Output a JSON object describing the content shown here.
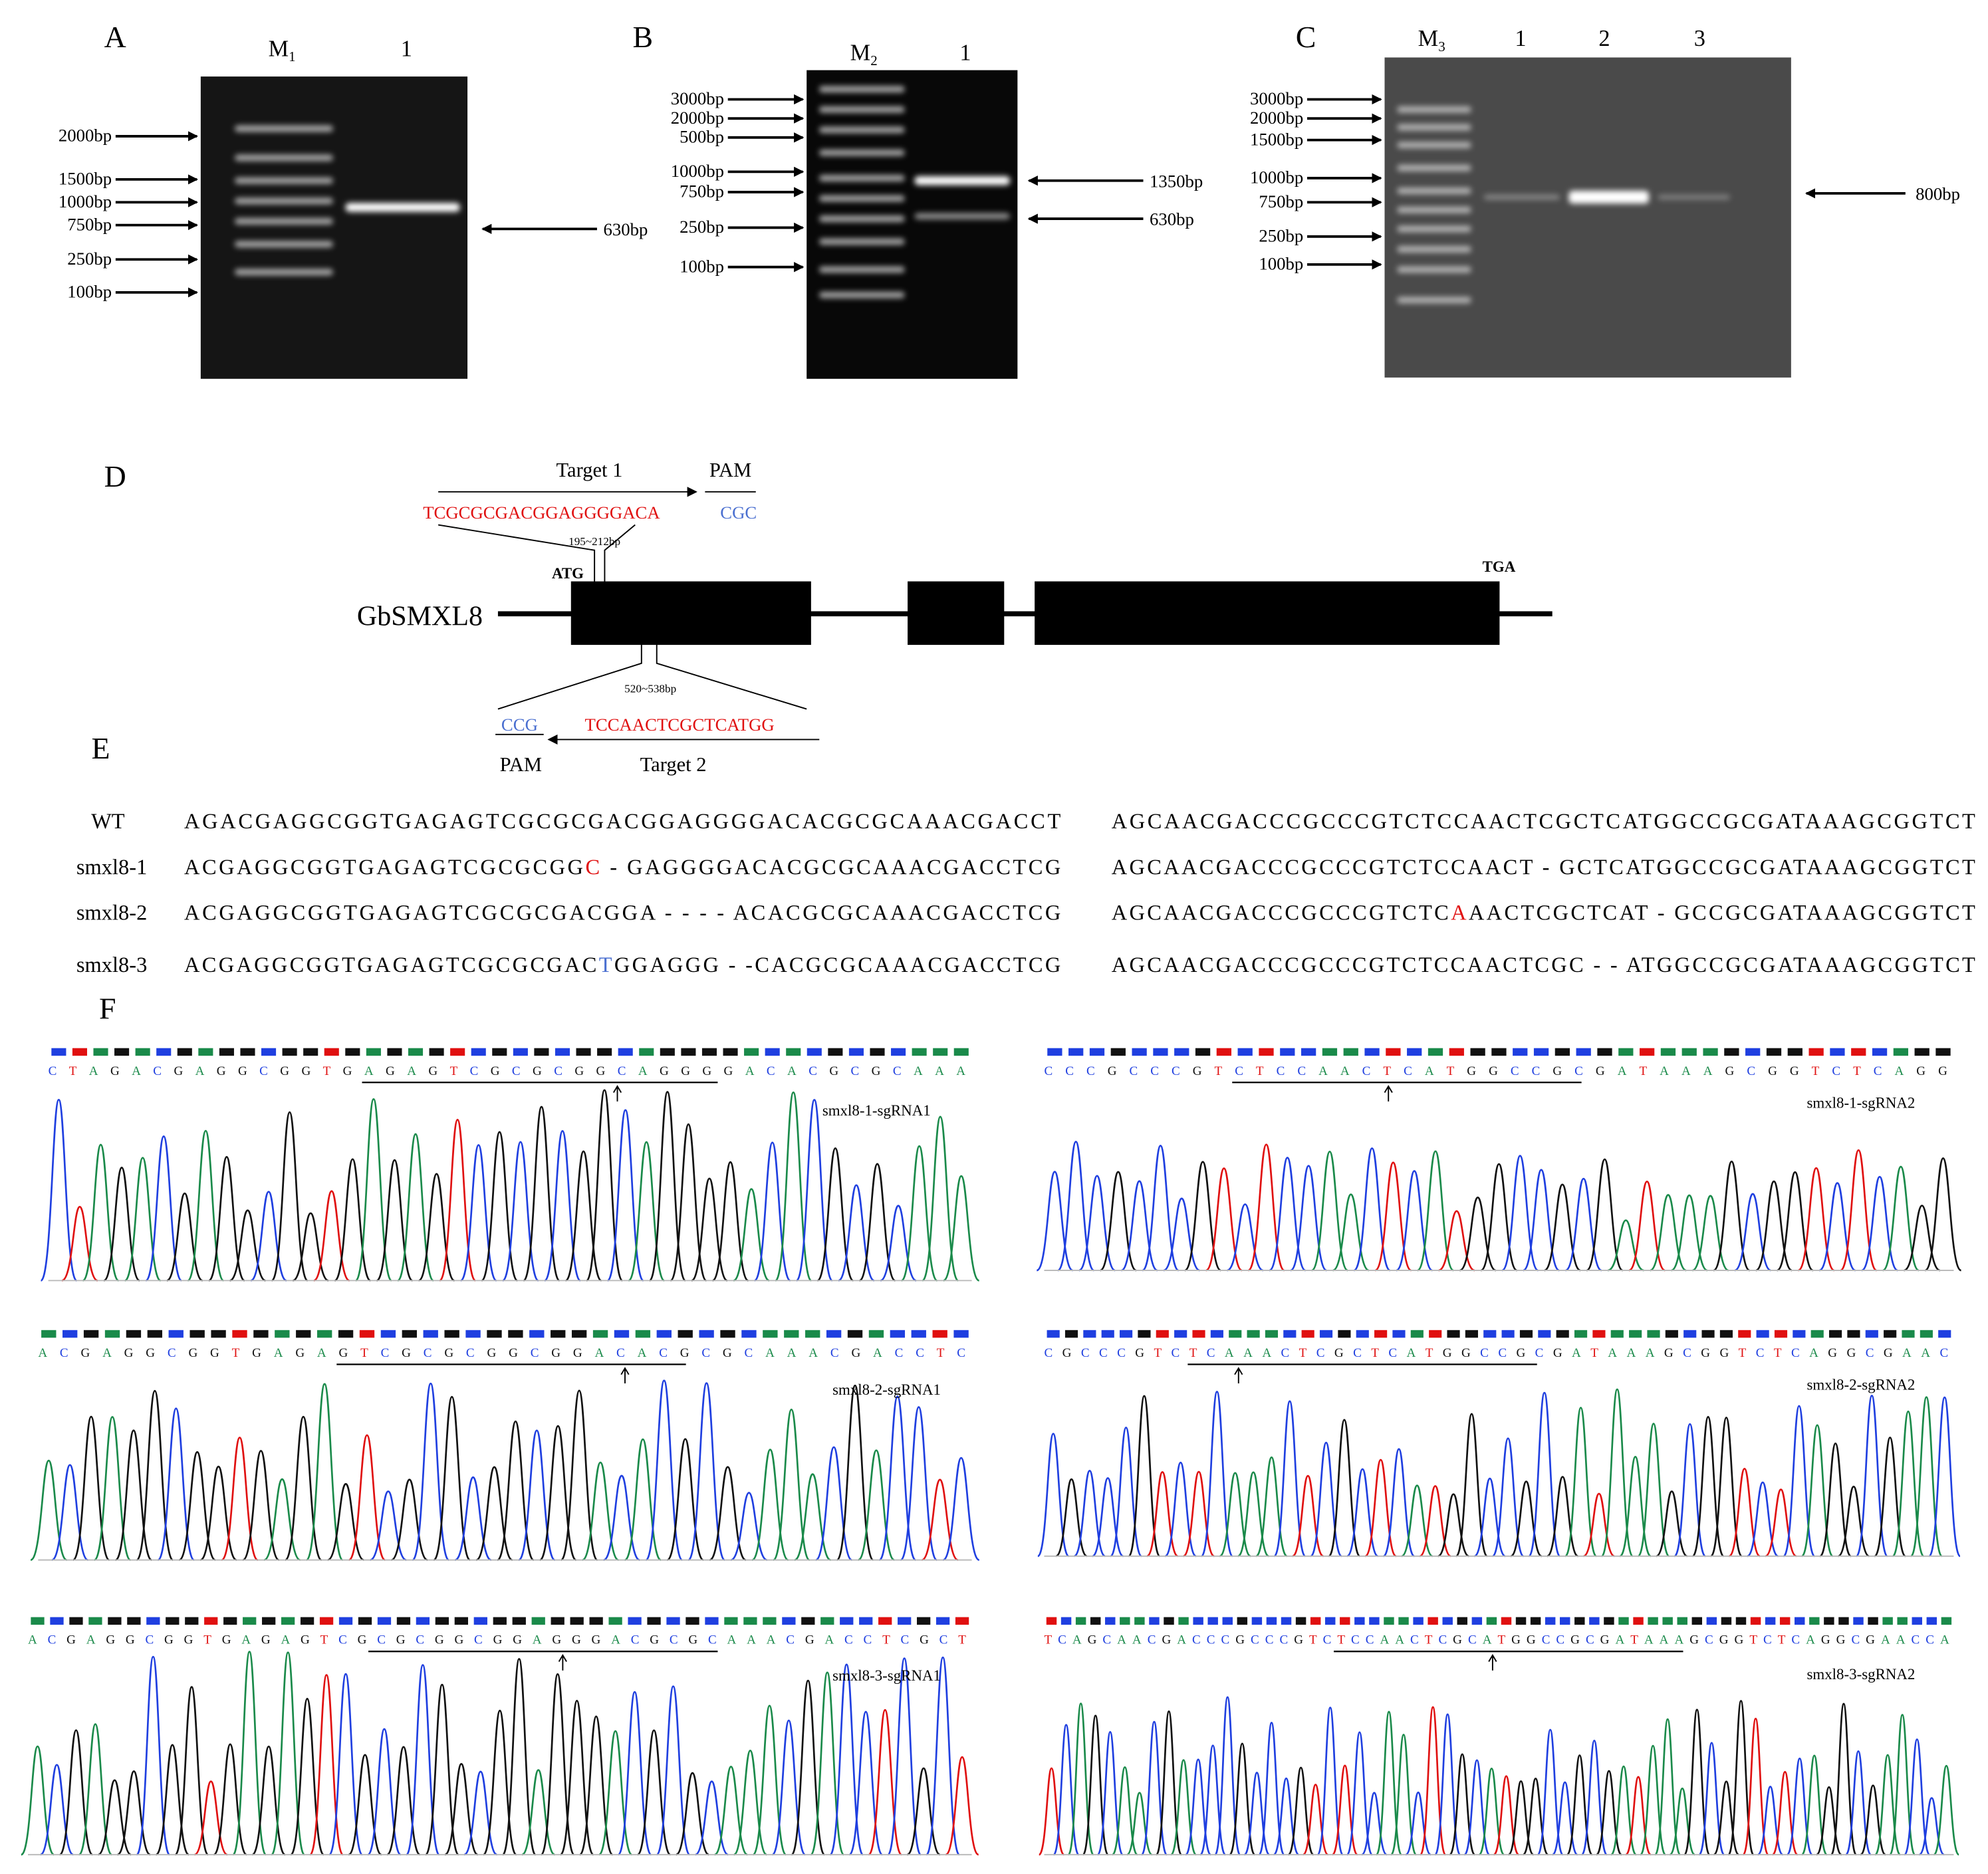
{
  "panels": {
    "a": {
      "label": "A",
      "marker": "M",
      "marker_sub": "1",
      "lanes": [
        "1"
      ],
      "ladder": [
        "2000bp",
        "1500bp",
        "1000bp",
        "750bp",
        "250bp",
        "100bp"
      ],
      "bands": [
        "630bp"
      ]
    },
    "b": {
      "label": "B",
      "marker": "M",
      "marker_sub": "2",
      "lanes": [
        "1"
      ],
      "ladder": [
        "3000bp",
        "2000bp",
        "500bp",
        "1000bp",
        "750bp",
        "250bp",
        "100bp"
      ],
      "bands": [
        "1350bp",
        "630bp"
      ]
    },
    "c": {
      "label": "C",
      "marker": "M",
      "marker_sub": "3",
      "lanes": [
        "1",
        "2",
        "3"
      ],
      "ladder": [
        "3000bp",
        "2000bp",
        "1500bp",
        "1000bp",
        "750bp",
        "250bp",
        "100bp"
      ],
      "bands": [
        "800bp"
      ]
    },
    "d": {
      "label": "D",
      "target1": "Target 1",
      "pam1_label": "PAM",
      "target1_seq": "TCGCGCGACGGAGGGGACA",
      "pam1_seq": "CGC",
      "target1_pos": "195~212bp",
      "start_codon": "ATG",
      "stop_codon": "TGA",
      "gene": "GbSMXL8",
      "target2_pos": "520~538bp",
      "pam2_seq": "CCG",
      "target2_seq": "TCCAACTCGCTCATGG",
      "pam2_label": "PAM",
      "target2": "Target 2"
    },
    "e": {
      "label": "E",
      "rows": [
        {
          "name": "WT",
          "left": [
            {
              "text": "AGACGAGGCGGTGAGAGTCGCGCGACGGAGGGGACACGCGCAAACGACCT"
            }
          ],
          "right": [
            {
              "text": "AGCAACGACCCGCCCGTCTCCAACTCGCTCATGGCCGCGATAAAGCGGTCT"
            }
          ]
        },
        {
          "name": "smxl8-1",
          "left": [
            {
              "text": "ACGAGGCGGTGAGAGTCGCGCGG"
            },
            {
              "text": "C",
              "color": "#e01010"
            },
            {
              "text": " - GAGGGGACACGCGCAAACGACCTCG"
            }
          ],
          "right": [
            {
              "text": "AGCAACGACCCGCCCGTCTCCAACT - GCTCATGGCCGCGATAAAGCGGTCT"
            }
          ]
        },
        {
          "name": "smxl8-2",
          "left": [
            {
              "text": "ACGAGGCGGTGAGAGTCGCGCGACGGA - - - - ACACGCGCAAACGACCTCG"
            }
          ],
          "right": [
            {
              "text": "AGCAACGACCCGCCCGTCTC"
            },
            {
              "text": "A",
              "color": "#e01010"
            },
            {
              "text": "AACTCGCTCAT - GCCGCGATAAAGCGGTCT"
            }
          ]
        },
        {
          "name": "smxl8-3",
          "left": [
            {
              "text": "ACGAGGCGGTGAGAGTCGCGCGAC"
            },
            {
              "text": "T",
              "color": "#4a6fd0"
            },
            {
              "text": "GGAGGG - -CACGCGCAAACGACCTCG"
            }
          ],
          "right": [
            {
              "text": "AGCAACGACCCGCCCGTCTCCAACTCGC - - ATGGCCGCGATAAAGCGGTCT"
            }
          ]
        }
      ]
    },
    "f": {
      "label": "F",
      "traces": [
        {
          "name": "smxl8-1-sgRNA1",
          "sequence": "CTAGACGAGGCGGTGAGAGTCGCGCGGCAGGGGACACGCGCAAA"
        },
        {
          "name": "smxl8-1-sgRNA2",
          "sequence": "CCCGCCCGTCTCCAACTCATGGCCGCGATAAAGCGGTCTCAGG"
        },
        {
          "name": "smxl8-2-sgRNA1",
          "sequence": "ACGAGGCGGTGAGAGTCGCGCGGCGGACACGCGCAAACGACCTC"
        },
        {
          "name": "smxl8-2-sgRNA2",
          "sequence": "CGCCCGTCTCAAACTCGCTCATGGCCGCGATAAAGCGGTCTCAGGCGAAC"
        },
        {
          "name": "smxl8-3-sgRNA1",
          "sequence": "ACGAGGCGGTGAGAGTCGCGCGGCGGAGGGACGCGCAAACGACCTCGCT"
        },
        {
          "name": "smxl8-3-sgRNA2",
          "sequence": "TCAGCAACGACCCGCCCGTCTCCAACTCGCATGGCCGCGATAAAGCGGTCTCAGGCGAACCA"
        }
      ]
    }
  }
}
